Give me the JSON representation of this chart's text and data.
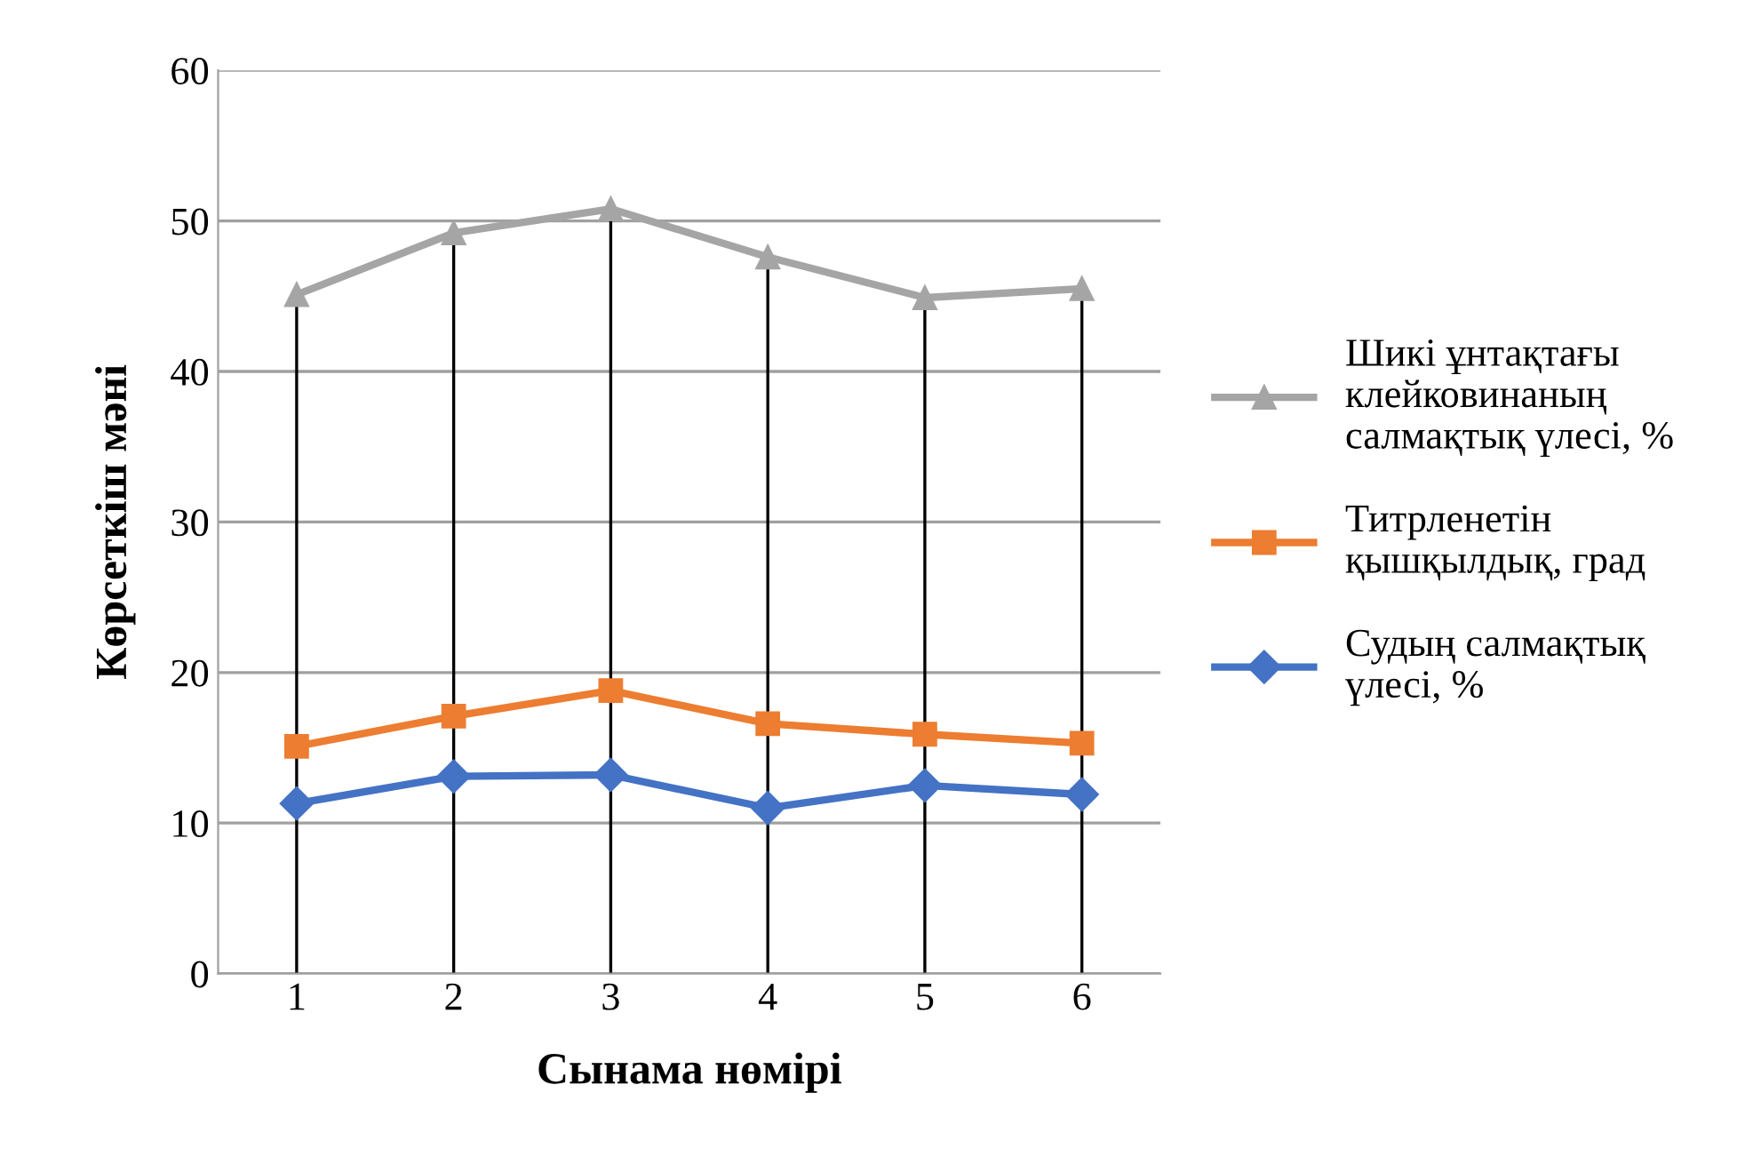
{
  "chart_data": {
    "type": "line",
    "xlabel": "Сынама нөмірі",
    "ylabel": "Көрсеткіш мәні",
    "categories": [
      "1",
      "2",
      "3",
      "4",
      "5",
      "6"
    ],
    "series": [
      {
        "name": "Шикі ұнтақтағы клейковинаның салмақтық үлесі, %",
        "color": "#a5a5a5",
        "marker": "triangle",
        "values": [
          45.1,
          49.2,
          50.8,
          47.6,
          44.9,
          45.5
        ]
      },
      {
        "name": "Титрленетін қышқылдық, град",
        "color": "#ed7d31",
        "marker": "square",
        "values": [
          15.1,
          17.1,
          18.8,
          16.6,
          15.9,
          15.3
        ]
      },
      {
        "name": "Судың салмақтық үлесі, %",
        "color": "#4472c4",
        "marker": "diamond",
        "values": [
          11.3,
          13.1,
          13.2,
          11.0,
          12.5,
          11.9
        ]
      }
    ],
    "ylim": [
      0,
      60
    ],
    "yticks": [
      0,
      10,
      20,
      30,
      40,
      50,
      60
    ],
    "grid": "y",
    "legend": "right",
    "ref_lines": [
      {
        "axis": "x",
        "value": "1",
        "label": null,
        "color": "#000000"
      },
      {
        "axis": "x",
        "value": "2",
        "label": null,
        "color": "#000000"
      },
      {
        "axis": "x",
        "value": "3",
        "label": null,
        "color": "#000000"
      },
      {
        "axis": "x",
        "value": "4",
        "label": null,
        "color": "#000000"
      },
      {
        "axis": "x",
        "value": "5",
        "label": null,
        "color": "#000000"
      },
      {
        "axis": "x",
        "value": "6",
        "label": null,
        "color": "#000000"
      }
    ]
  }
}
